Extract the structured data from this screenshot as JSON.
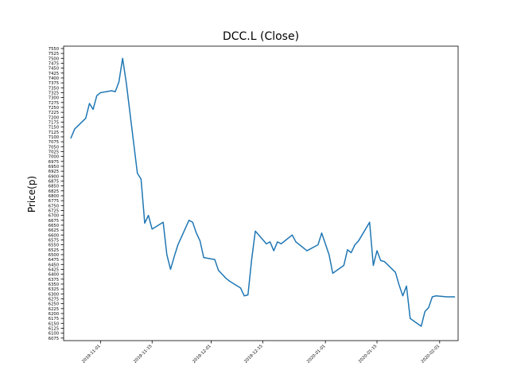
{
  "chart_data": {
    "type": "line",
    "title": "DCC.L (Close)",
    "xlabel": "",
    "ylabel": "Price(p)",
    "ylim": [
      6062,
      7562
    ],
    "xlim": [
      "2019-10-22",
      "2020-02-06"
    ],
    "y_ticks": [
      6075,
      6100,
      6125,
      6150,
      6175,
      6200,
      6225,
      6250,
      6275,
      6300,
      6325,
      6350,
      6375,
      6400,
      6425,
      6450,
      6475,
      6500,
      6525,
      6550,
      6575,
      6600,
      6625,
      6650,
      6675,
      6700,
      6725,
      6750,
      6775,
      6800,
      6825,
      6850,
      6875,
      6900,
      6925,
      6950,
      6975,
      7000,
      7025,
      7050,
      7075,
      7100,
      7125,
      7150,
      7175,
      7200,
      7225,
      7250,
      7275,
      7300,
      7325,
      7350,
      7375,
      7400,
      7425,
      7450,
      7475,
      7500,
      7525,
      7550
    ],
    "x_ticks": [
      "2019-11-01",
      "2019-11-15",
      "2019-12-01",
      "2019-12-15",
      "2020-01-01",
      "2020-01-15",
      "2020-02-01"
    ],
    "grid": false,
    "series": [
      {
        "color": "#1f77b4",
        "x": [
          "2019-10-24",
          "2019-10-25",
          "2019-10-28",
          "2019-10-29",
          "2019-10-30",
          "2019-10-31",
          "2019-11-01",
          "2019-11-04",
          "2019-11-05",
          "2019-11-06",
          "2019-11-07",
          "2019-11-08",
          "2019-11-11",
          "2019-11-12",
          "2019-11-13",
          "2019-11-14",
          "2019-11-15",
          "2019-11-18",
          "2019-11-19",
          "2019-11-20",
          "2019-11-21",
          "2019-11-22",
          "2019-11-25",
          "2019-11-26",
          "2019-11-27",
          "2019-11-28",
          "2019-11-29",
          "2019-12-02",
          "2019-12-03",
          "2019-12-04",
          "2019-12-05",
          "2019-12-06",
          "2019-12-09",
          "2019-12-10",
          "2019-12-11",
          "2019-12-12",
          "2019-12-13",
          "2019-12-16",
          "2019-12-17",
          "2019-12-18",
          "2019-12-19",
          "2019-12-20",
          "2019-12-23",
          "2019-12-24",
          "2019-12-27",
          "2019-12-30",
          "2019-12-31",
          "2020-01-02",
          "2020-01-03",
          "2020-01-06",
          "2020-01-07",
          "2020-01-08",
          "2020-01-09",
          "2020-01-10",
          "2020-01-13",
          "2020-01-14",
          "2020-01-15",
          "2020-01-16",
          "2020-01-17",
          "2020-01-20",
          "2020-01-21",
          "2020-01-22",
          "2020-01-23",
          "2020-01-24",
          "2020-01-27",
          "2020-01-28",
          "2020-01-29",
          "2020-01-30",
          "2020-01-31",
          "2020-02-03",
          "2020-02-04",
          "2020-02-05"
        ],
        "y": [
          7095,
          7140,
          7195,
          7270,
          7240,
          7310,
          7325,
          7335,
          7330,
          7380,
          7500,
          7375,
          6915,
          6885,
          6660,
          6700,
          6630,
          6665,
          6500,
          6425,
          6490,
          6550,
          6675,
          6665,
          6610,
          6570,
          6485,
          6475,
          6420,
          6400,
          6380,
          6365,
          6330,
          6290,
          6295,
          6475,
          6620,
          6555,
          6565,
          6520,
          6565,
          6555,
          6600,
          6565,
          6520,
          6550,
          6610,
          6500,
          6405,
          6445,
          6525,
          6510,
          6550,
          6570,
          6665,
          6445,
          6520,
          6470,
          6465,
          6410,
          6345,
          6290,
          6340,
          6175,
          6135,
          6210,
          6230,
          6285,
          6290,
          6285,
          6285,
          6285
        ]
      }
    ]
  }
}
